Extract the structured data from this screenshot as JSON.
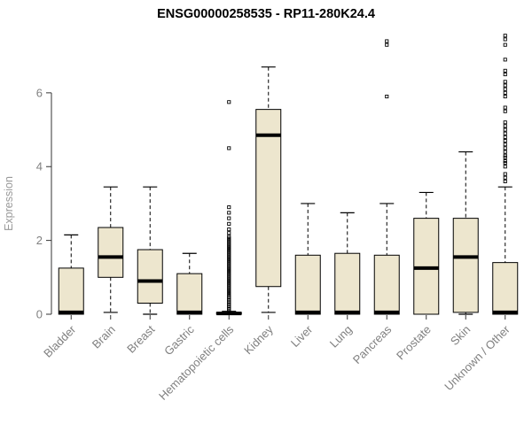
{
  "chart_data": {
    "type": "boxplot",
    "title": "ENSG00000258535 - RP11-280K24.4",
    "ylabel": "Expression",
    "ylim": [
      0,
      7.7
    ],
    "yticks": [
      0,
      2,
      4,
      6
    ],
    "styles": {
      "box_fill": "#EDE6CE",
      "box_stroke": "#000000",
      "median_color": "#000000",
      "whisker_color": "#000000",
      "axis_color": "#333333",
      "tick_label_color": "#808080",
      "category_label_color": "#808080",
      "ylabel_color": "#999999",
      "title_color": "#000000",
      "background": "#ffffff"
    },
    "categories": [
      "Bladder",
      "Brain",
      "Breast",
      "Gastric",
      "Hematopoietic cells",
      "Kidney",
      "Liver",
      "Lung",
      "Pancreas",
      "Prostate",
      "Skin",
      "Unknown / Other"
    ],
    "boxes": [
      {
        "category": "Bladder",
        "low": 0,
        "q1": 0,
        "median": 0.05,
        "q3": 1.25,
        "high": 2.15,
        "outliers": []
      },
      {
        "category": "Brain",
        "low": 0.05,
        "q1": 1.0,
        "median": 1.55,
        "q3": 2.35,
        "high": 3.45,
        "outliers": []
      },
      {
        "category": "Breast",
        "low": 0,
        "q1": 0.3,
        "median": 0.9,
        "q3": 1.75,
        "high": 3.45,
        "outliers": []
      },
      {
        "category": "Gastric",
        "low": 0,
        "q1": 0,
        "median": 0.05,
        "q3": 1.1,
        "high": 1.65,
        "outliers": []
      },
      {
        "category": "Hematopoietic cells",
        "low": 0,
        "q1": 0,
        "median": 0.02,
        "q3": 0.05,
        "high": 0.08,
        "outliers": [
          0.1,
          0.14,
          0.18,
          0.22,
          0.26,
          0.3,
          0.34,
          0.38,
          0.42,
          0.46,
          0.5,
          0.55,
          0.6,
          0.65,
          0.7,
          0.75,
          0.8,
          0.85,
          0.9,
          0.95,
          1.0,
          1.05,
          1.1,
          1.15,
          1.2,
          1.25,
          1.3,
          1.35,
          1.4,
          1.45,
          1.5,
          1.55,
          1.6,
          1.65,
          1.7,
          1.75,
          1.8,
          1.85,
          1.9,
          1.95,
          2.0,
          2.05,
          2.1,
          2.2,
          2.3,
          2.45,
          2.6,
          2.75,
          2.9,
          4.5,
          5.75
        ]
      },
      {
        "category": "Kidney",
        "low": 0.05,
        "q1": 0.75,
        "median": 4.85,
        "q3": 5.55,
        "high": 6.7,
        "outliers": []
      },
      {
        "category": "Liver",
        "low": 0,
        "q1": 0,
        "median": 0.05,
        "q3": 1.6,
        "high": 3.0,
        "outliers": []
      },
      {
        "category": "Lung",
        "low": 0,
        "q1": 0,
        "median": 0.05,
        "q3": 1.65,
        "high": 2.75,
        "outliers": []
      },
      {
        "category": "Pancreas",
        "low": 0,
        "q1": 0,
        "median": 0.05,
        "q3": 1.6,
        "high": 3.0,
        "outliers": [
          5.9,
          7.3,
          7.4
        ]
      },
      {
        "category": "Prostate",
        "low": 0,
        "q1": 0,
        "median": 1.25,
        "q3": 2.6,
        "high": 3.3,
        "outliers": []
      },
      {
        "category": "Skin",
        "low": 0,
        "q1": 0.05,
        "median": 1.55,
        "q3": 2.6,
        "high": 4.4,
        "outliers": []
      },
      {
        "category": "Unknown / Other",
        "low": 0,
        "q1": 0,
        "median": 0.05,
        "q3": 1.4,
        "high": 3.45,
        "outliers": [
          3.6,
          3.7,
          3.8,
          4.0,
          4.1,
          4.15,
          4.25,
          4.3,
          4.4,
          4.5,
          4.6,
          4.7,
          4.8,
          4.9,
          5.0,
          5.1,
          5.2,
          5.5,
          5.6,
          5.9,
          6.0,
          6.1,
          6.2,
          6.3,
          6.5,
          6.6,
          6.9,
          7.3,
          7.45,
          7.55
        ]
      }
    ]
  }
}
